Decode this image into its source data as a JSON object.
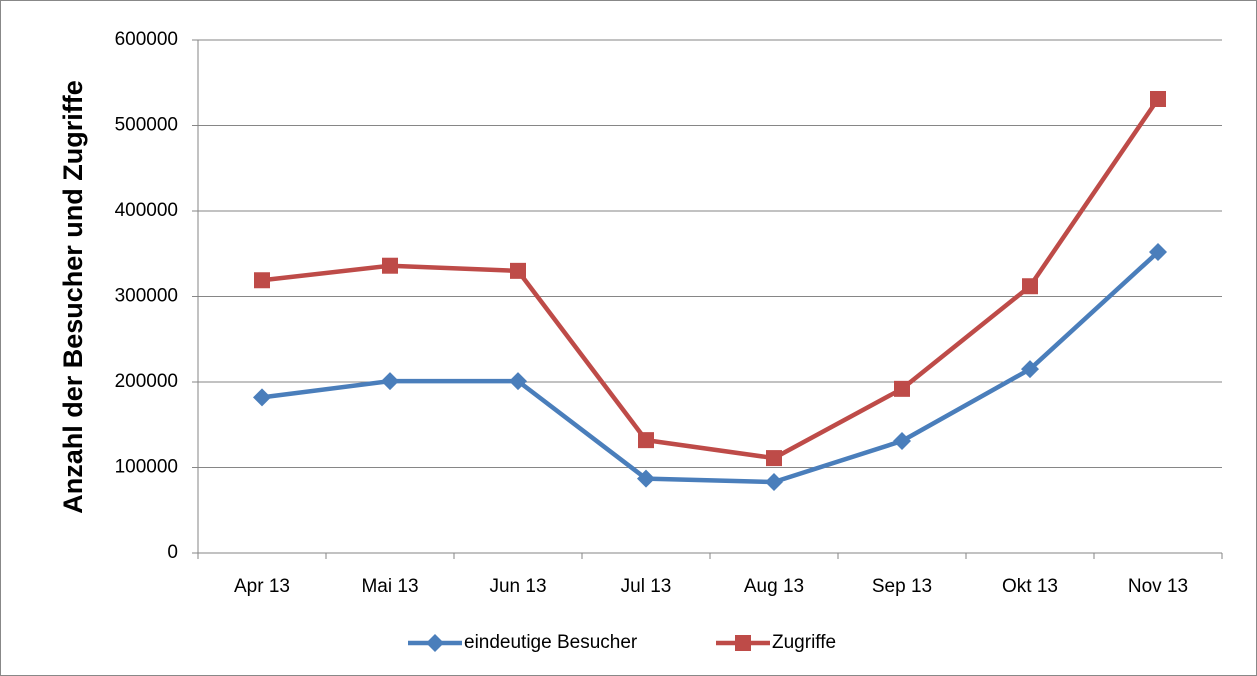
{
  "chart_data": {
    "type": "line",
    "y_label": "Anzahl der Besucher und Zugriffe",
    "categories": [
      "Apr 13",
      "Mai 13",
      "Jun 13",
      "Jul 13",
      "Aug 13",
      "Sep 13",
      "Okt 13",
      "Nov 13"
    ],
    "series": [
      {
        "name": "eindeutige Besucher",
        "color": "#4a7ebb",
        "marker": "diamond",
        "values": [
          182000,
          201000,
          201000,
          87000,
          83000,
          131000,
          215000,
          352000
        ]
      },
      {
        "name": "Zugriffe",
        "color": "#be4b48",
        "marker": "square",
        "values": [
          319000,
          336000,
          330000,
          132000,
          111000,
          192000,
          312000,
          531000
        ]
      }
    ],
    "ylim": [
      0,
      600000
    ],
    "yticks": [
      0,
      100000,
      200000,
      300000,
      400000,
      500000,
      600000
    ],
    "grid": true,
    "legend": "bottom"
  }
}
